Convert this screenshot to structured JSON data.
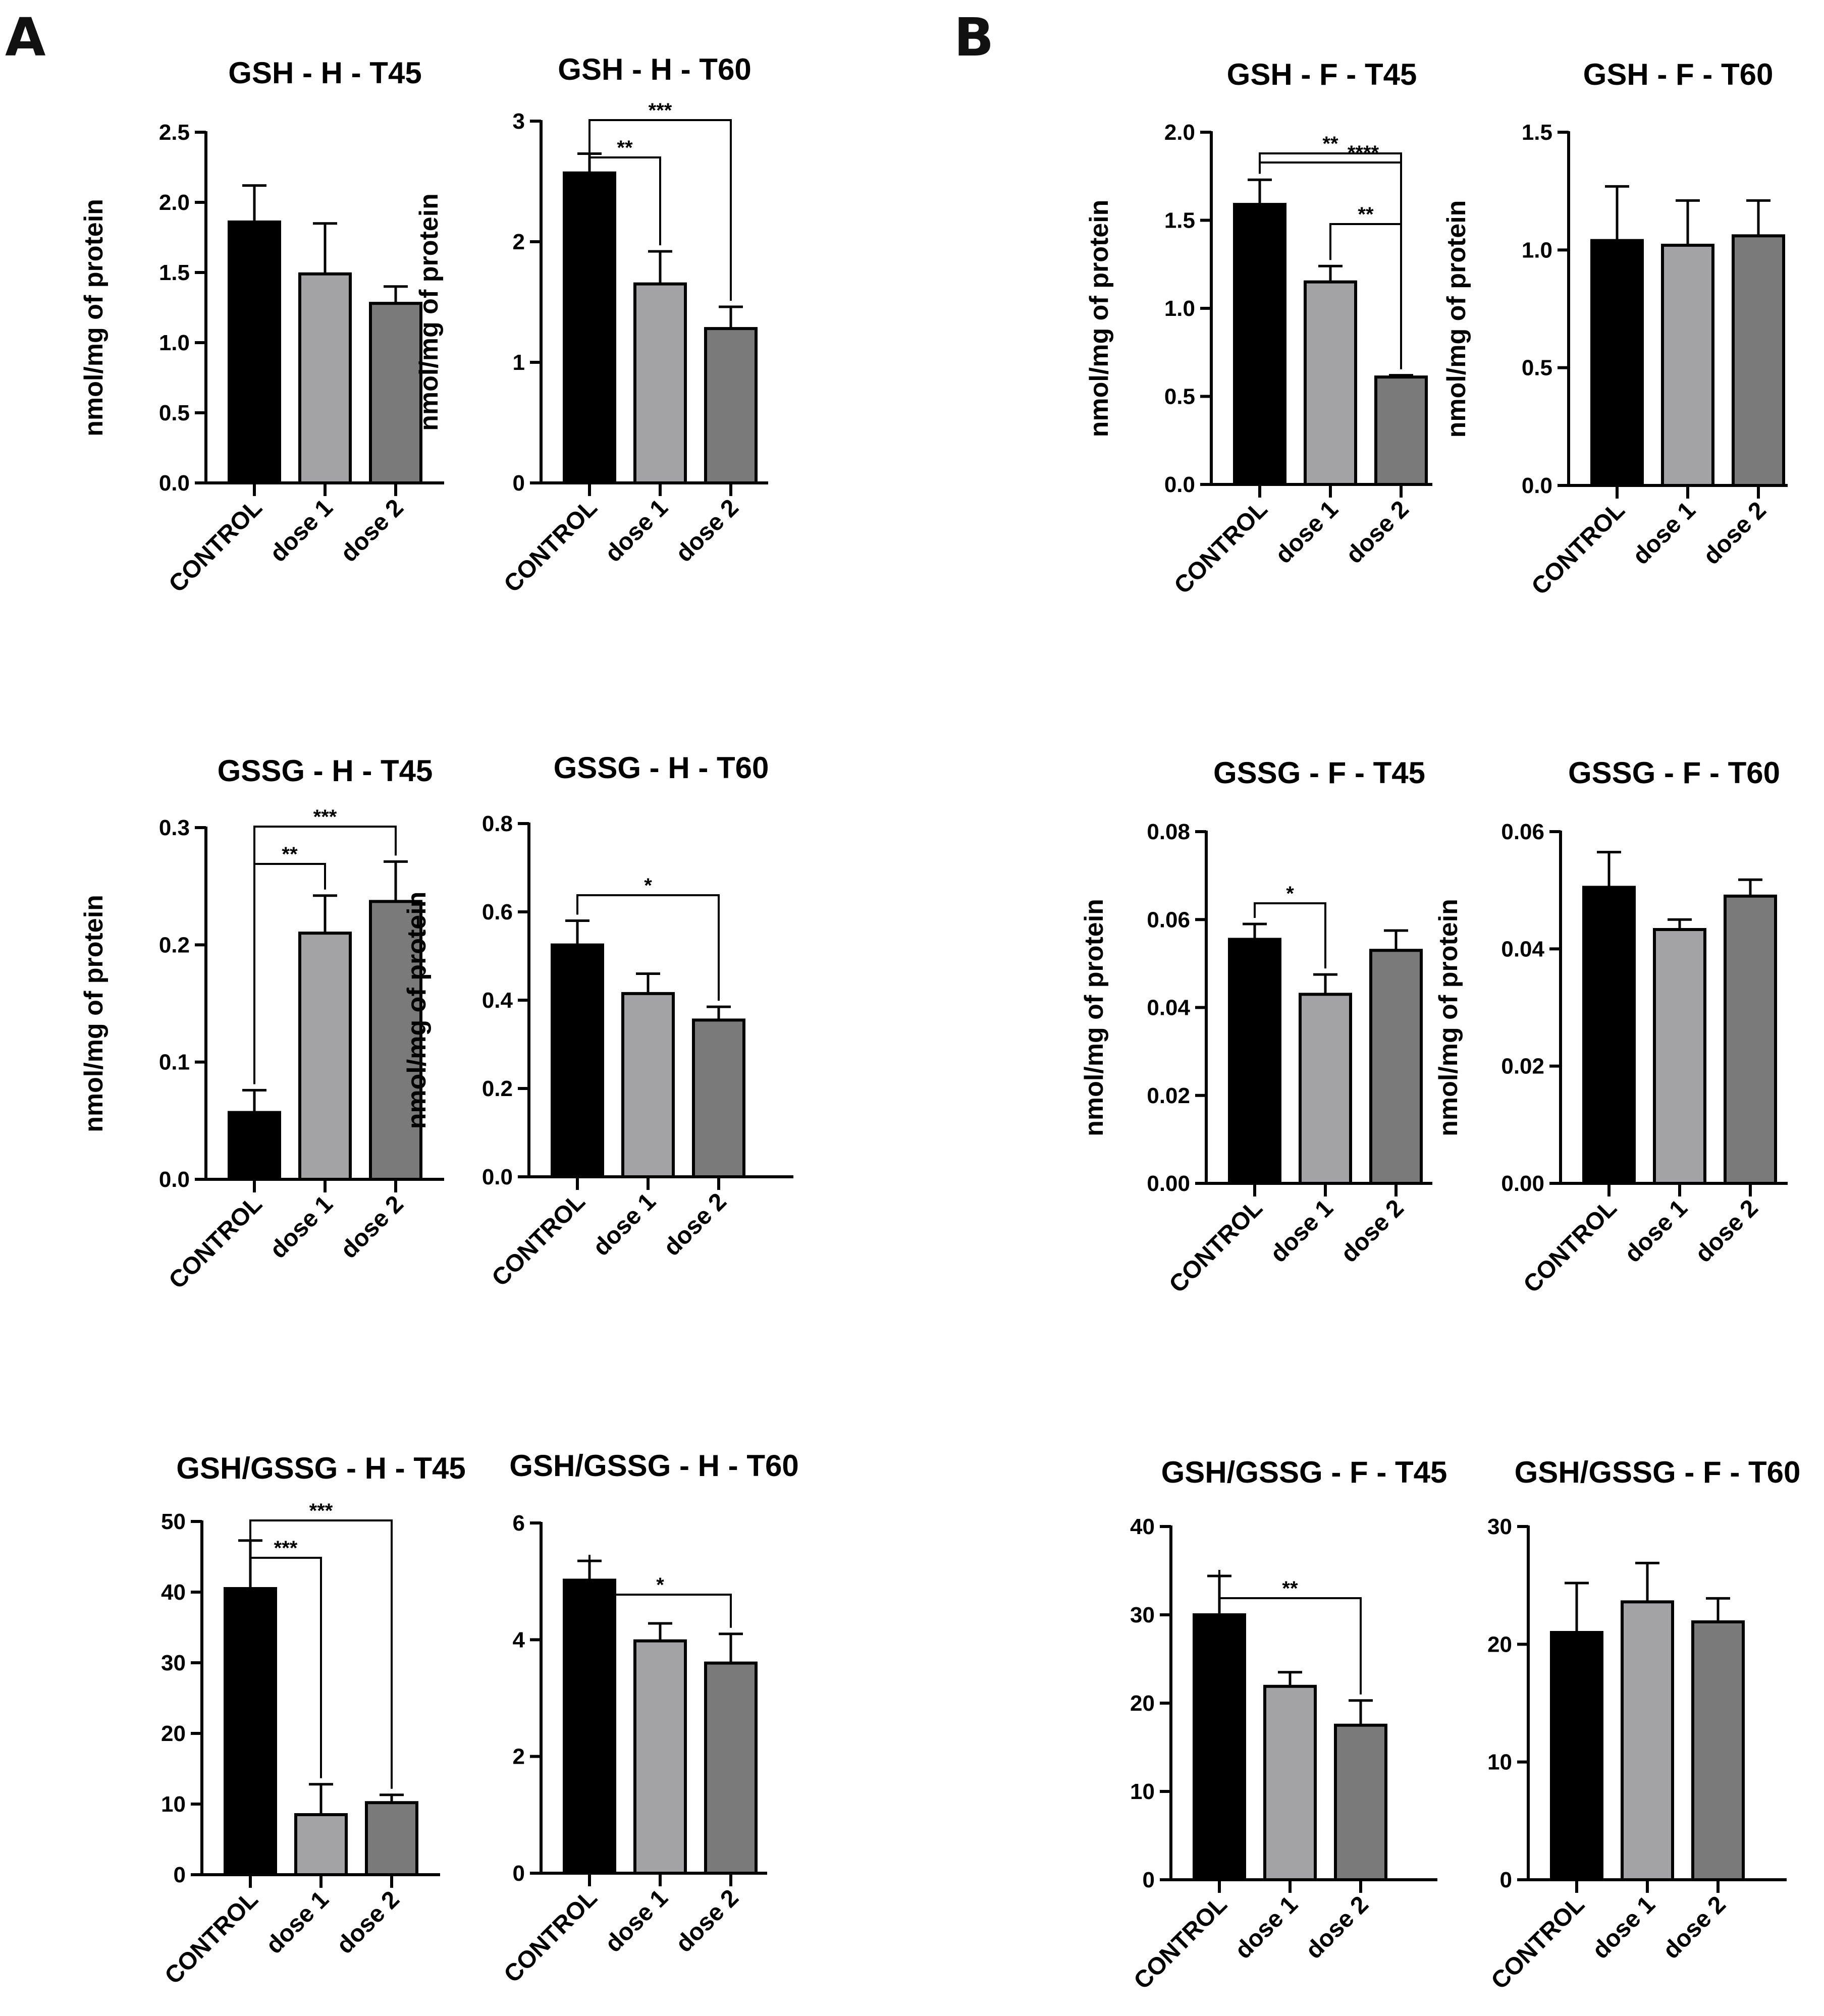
{
  "figure": {
    "panel_labels": [
      "A",
      "B"
    ],
    "bar_colors": [
      "#000000",
      "#a3a3a6",
      "#7a7a7a"
    ]
  },
  "chart_data": [
    {
      "id": "gsh-h-t45",
      "type": "bar",
      "title": "GSH - H - T45",
      "ylabel": "nmol/mg of protein",
      "categories": [
        "CONTROL",
        "dose 1",
        "dose 2"
      ],
      "values": [
        1.86,
        1.49,
        1.28
      ],
      "errors": [
        0.26,
        0.36,
        0.12
      ],
      "ylim": [
        0,
        2.5
      ],
      "yticks": [
        "0.0",
        "0.5",
        "1.0",
        "1.5",
        "2.0",
        "2.5"
      ],
      "significance": []
    },
    {
      "id": "gsh-h-t60",
      "type": "bar",
      "title": "GSH - H - T60",
      "ylabel": "nmol/mg of protein",
      "categories": [
        "CONTROL",
        "dose 1",
        "dose 2"
      ],
      "values": [
        2.57,
        1.65,
        1.28
      ],
      "errors": [
        0.16,
        0.27,
        0.18
      ],
      "ylim": [
        0,
        3
      ],
      "yticks": [
        "0",
        "1",
        "2",
        "3"
      ],
      "significance": [
        {
          "from": 0,
          "to": 1,
          "label": "**"
        },
        {
          "from": 0,
          "to": 2,
          "label": "***"
        }
      ]
    },
    {
      "id": "gsh-f-t45",
      "type": "bar",
      "title": "GSH - F - T45",
      "ylabel": "nmol/mg of protein",
      "categories": [
        "CONTROL",
        "dose 1",
        "dose 2"
      ],
      "values": [
        1.59,
        1.15,
        0.61
      ],
      "errors": [
        0.14,
        0.09,
        0.01
      ],
      "ylim": [
        0,
        2.0
      ],
      "yticks": [
        "0.0",
        "0.5",
        "1.0",
        "1.5",
        "2.0"
      ],
      "significance": [
        {
          "from": 0,
          "to": 2,
          "label": "**"
        },
        {
          "from": 0,
          "to": 2,
          "label": "****"
        },
        {
          "from": 1,
          "to": 2,
          "label": "**"
        }
      ]
    },
    {
      "id": "gsh-f-t60",
      "type": "bar",
      "title": "GSH - F - T60",
      "ylabel": "nmol/mg of protein",
      "categories": [
        "CONTROL",
        "dose 1",
        "dose 2"
      ],
      "values": [
        1.04,
        1.02,
        1.06
      ],
      "errors": [
        0.23,
        0.19,
        0.15
      ],
      "ylim": [
        0,
        1.5
      ],
      "yticks": [
        "0.0",
        "0.5",
        "1.0",
        "1.5"
      ],
      "significance": []
    },
    {
      "id": "gssg-h-t45",
      "type": "bar",
      "title": "GSSG - H - T45",
      "ylabel": "nmol/mg of protein",
      "categories": [
        "CONTROL",
        "dose 1",
        "dose 2"
      ],
      "values": [
        0.057,
        0.21,
        0.237
      ],
      "errors": [
        0.019,
        0.032,
        0.034
      ],
      "ylim": [
        0,
        0.3
      ],
      "yticks": [
        "0.0",
        "0.1",
        "0.2",
        "0.3"
      ],
      "significance": [
        {
          "from": 0,
          "to": 1,
          "label": "**"
        },
        {
          "from": 0,
          "to": 2,
          "label": "***"
        }
      ]
    },
    {
      "id": "gssg-h-t60",
      "type": "bar",
      "title": "GSSG - H - T60",
      "ylabel": "nmol/mg of protein",
      "categories": [
        "CONTROL",
        "dose 1",
        "dose 2"
      ],
      "values": [
        0.525,
        0.415,
        0.355
      ],
      "errors": [
        0.055,
        0.045,
        0.03
      ],
      "ylim": [
        0,
        0.8
      ],
      "yticks": [
        "0.0",
        "0.2",
        "0.4",
        "0.6",
        "0.8"
      ],
      "significance": [
        {
          "from": 0,
          "to": 2,
          "label": "*"
        }
      ]
    },
    {
      "id": "gssg-f-t45",
      "type": "bar",
      "title": "GSSG - F - T45",
      "ylabel": "nmol/mg of protein",
      "categories": [
        "CONTROL",
        "dose 1",
        "dose 2"
      ],
      "values": [
        0.0555,
        0.043,
        0.053
      ],
      "errors": [
        0.0035,
        0.0045,
        0.0045
      ],
      "ylim": [
        0,
        0.08
      ],
      "yticks": [
        "0.00",
        "0.02",
        "0.04",
        "0.06",
        "0.08"
      ],
      "significance": [
        {
          "from": 0,
          "to": 1,
          "label": "*"
        }
      ]
    },
    {
      "id": "gssg-f-t60",
      "type": "bar",
      "title": "GSSG - F - T60",
      "ylabel": "nmol/mg of protein",
      "categories": [
        "CONTROL",
        "dose 1",
        "dose 2"
      ],
      "values": [
        0.0505,
        0.0433,
        0.049
      ],
      "errors": [
        0.006,
        0.0017,
        0.0028
      ],
      "ylim": [
        0,
        0.06
      ],
      "yticks": [
        "0.00",
        "0.02",
        "0.04",
        "0.06"
      ],
      "significance": []
    },
    {
      "id": "gsh-gssg-h-t45",
      "type": "bar",
      "title": "GSH/GSSG - H - T45",
      "ylabel": "",
      "categories": [
        "CONTROL",
        "dose 1",
        "dose 2"
      ],
      "values": [
        40.5,
        8.5,
        10.2
      ],
      "errors": [
        6.8,
        4.3,
        1.1
      ],
      "ylim": [
        0,
        50
      ],
      "yticks": [
        "0",
        "10",
        "20",
        "30",
        "40",
        "50"
      ],
      "significance": [
        {
          "from": 0,
          "to": 1,
          "label": "***"
        },
        {
          "from": 0,
          "to": 2,
          "label": "***"
        }
      ]
    },
    {
      "id": "gsh-gssg-h-t60",
      "type": "bar",
      "title": "GSH/GSSG - H - T60",
      "ylabel": "",
      "categories": [
        "CONTROL",
        "dose 1",
        "dose 2"
      ],
      "values": [
        5.02,
        3.98,
        3.6
      ],
      "errors": [
        0.33,
        0.3,
        0.5
      ],
      "ylim": [
        0,
        6
      ],
      "yticks": [
        "0",
        "2",
        "4",
        "6"
      ],
      "significance": [
        {
          "from": 0,
          "to": 2,
          "label": "*"
        }
      ]
    },
    {
      "id": "gsh-gssg-f-t45",
      "type": "bar",
      "title": "GSH/GSSG - F - T45",
      "ylabel": "",
      "categories": [
        "CONTROL",
        "dose 1",
        "dose 2"
      ],
      "values": [
        30.0,
        21.9,
        17.5
      ],
      "errors": [
        4.4,
        1.6,
        2.8
      ],
      "ylim": [
        0,
        40
      ],
      "yticks": [
        "0",
        "10",
        "20",
        "30",
        "40"
      ],
      "significance": [
        {
          "from": 0,
          "to": 2,
          "label": "**"
        }
      ]
    },
    {
      "id": "gsh-gssg-f-t60",
      "type": "bar",
      "title": "GSH/GSSG - F - T60",
      "ylabel": "",
      "categories": [
        "CONTROL",
        "dose 1",
        "dose 2"
      ],
      "values": [
        21.0,
        23.6,
        21.9
      ],
      "errors": [
        4.2,
        3.3,
        2.0
      ],
      "ylim": [
        0,
        30
      ],
      "yticks": [
        "0",
        "10",
        "20",
        "30"
      ],
      "significance": []
    }
  ]
}
